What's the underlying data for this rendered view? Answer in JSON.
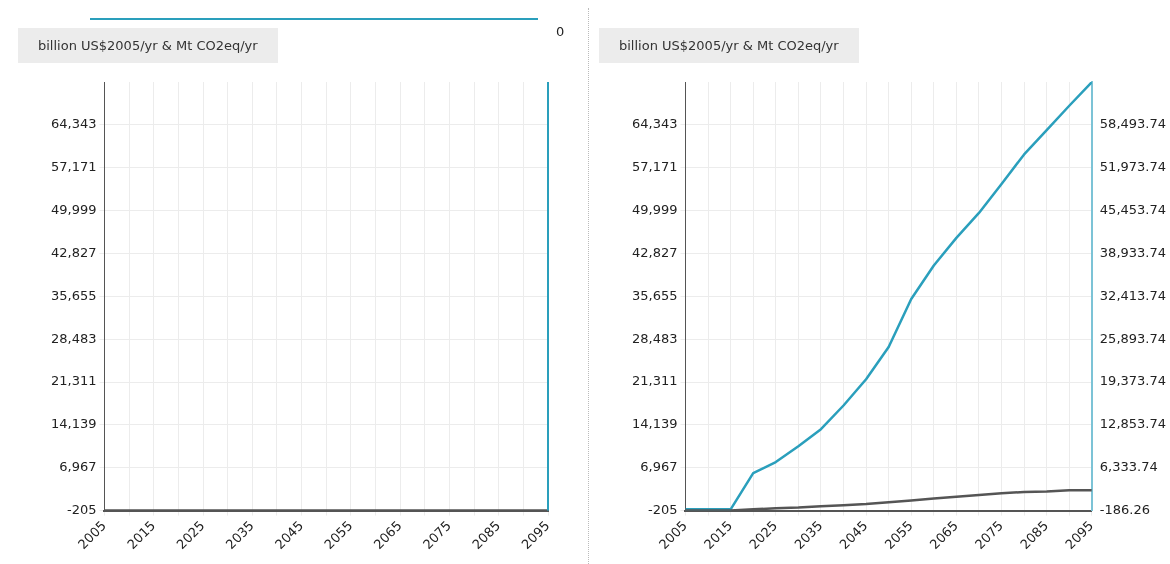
{
  "chart_data": [
    {
      "type": "line",
      "ylabel": "billion US$2005/yr & Mt CO2eq/yr",
      "annotations": [
        "0"
      ],
      "x": [
        2005,
        2010,
        2015,
        2020,
        2025,
        2030,
        2035,
        2040,
        2045,
        2050,
        2055,
        2060,
        2065,
        2070,
        2075,
        2080,
        2085,
        2090,
        2095
      ],
      "series": [
        {
          "color": "#555555",
          "values": [
            -200,
            -200,
            -200,
            -200,
            -200,
            -200,
            -200,
            -200,
            -200,
            -200,
            -200,
            -200,
            -200,
            -200,
            -200,
            -200,
            -200,
            -200,
            -200
          ]
        }
      ],
      "xlim": [
        2005,
        2095
      ],
      "xticks": [
        2005,
        {
          "value": 2010,
          "label": null
        },
        2015,
        {
          "value": 2020,
          "label": null
        },
        2025,
        {
          "value": 2030,
          "label": null
        },
        2035,
        {
          "value": 2040,
          "label": null
        },
        2045,
        {
          "value": 2050,
          "label": null
        },
        2055,
        {
          "value": 2060,
          "label": null
        },
        2065,
        {
          "value": 2070,
          "label": null
        },
        2075,
        {
          "value": 2080,
          "label": null
        },
        2085,
        {
          "value": 2090,
          "label": null
        },
        2095
      ],
      "ylim": [
        -205,
        71515
      ],
      "yticks": [
        -205,
        {
          "value": 6967,
          "label": "6,967"
        },
        {
          "value": 14139,
          "label": "14,139"
        },
        {
          "value": 21311,
          "label": "21,311"
        },
        {
          "value": 28483,
          "label": "28,483"
        },
        {
          "value": 35655,
          "label": "35,655"
        },
        {
          "value": 42827,
          "label": "42,827"
        },
        {
          "value": 49999,
          "label": "49,999"
        },
        {
          "value": 57171,
          "label": "57,171"
        },
        {
          "value": 64343,
          "label": "64,343"
        }
      ],
      "grid": true
    },
    {
      "type": "line",
      "ylabel": "billion US$2005/yr & Mt CO2eq/yr",
      "x": [
        2005,
        2010,
        2015,
        2020,
        2025,
        2030,
        2035,
        2040,
        2045,
        2050,
        2055,
        2060,
        2065,
        2070,
        2075,
        2080,
        2085,
        2090,
        2095
      ],
      "series": [
        {
          "color": "#555555",
          "values": [
            -200,
            -200,
            -200,
            0,
            200,
            300,
            500,
            700,
            900,
            1200,
            1500,
            1800,
            2100,
            2400,
            2700,
            2900,
            3000,
            3200,
            3200
          ]
        },
        {
          "color": "#2a9fbc",
          "axis": "y2",
          "values": [
            0,
            0,
            0,
            5500,
            7200,
            9600,
            12200,
            15800,
            19800,
            24700,
            32000,
            37100,
            41300,
            45100,
            49500,
            54000,
            57700,
            61400,
            65000
          ]
        }
      ],
      "xlim": [
        2005,
        2095
      ],
      "xticks": [
        2005,
        {
          "value": 2010,
          "label": null
        },
        2015,
        {
          "value": 2020,
          "label": null
        },
        2025,
        {
          "value": 2030,
          "label": null
        },
        2035,
        {
          "value": 2040,
          "label": null
        },
        2045,
        {
          "value": 2050,
          "label": null
        },
        2055,
        {
          "value": 2060,
          "label": null
        },
        2065,
        {
          "value": 2070,
          "label": null
        },
        2075,
        {
          "value": 2080,
          "label": null
        },
        2085,
        {
          "value": 2090,
          "label": null
        },
        2095
      ],
      "ylim": [
        -205,
        71515
      ],
      "yticks": [
        -205,
        {
          "value": 6967,
          "label": "6,967"
        },
        {
          "value": 14139,
          "label": "14,139"
        },
        {
          "value": 21311,
          "label": "21,311"
        },
        {
          "value": 28483,
          "label": "28,483"
        },
        {
          "value": 35655,
          "label": "35,655"
        },
        {
          "value": 42827,
          "label": "42,827"
        },
        {
          "value": 49999,
          "label": "49,999"
        },
        {
          "value": 57171,
          "label": "57,171"
        },
        {
          "value": 64343,
          "label": "64,343"
        }
      ],
      "y2lim": [
        -186.26,
        65013.74
      ],
      "y2ticks": [
        -186.26,
        {
          "value": 6333.74,
          "label": "6,333.74"
        },
        {
          "value": 12853.74,
          "label": "12,853.74"
        },
        {
          "value": 19373.74,
          "label": "19,373.74"
        },
        {
          "value": 25893.74,
          "label": "25,893.74"
        },
        {
          "value": 32413.74,
          "label": "32,413.74"
        },
        {
          "value": 38933.74,
          "label": "38,933.74"
        },
        {
          "value": 45453.74,
          "label": "45,453.74"
        },
        {
          "value": 51973.74,
          "label": "51,973.74"
        },
        {
          "value": 58493.74,
          "label": "58,493.74"
        }
      ],
      "grid": true
    }
  ]
}
